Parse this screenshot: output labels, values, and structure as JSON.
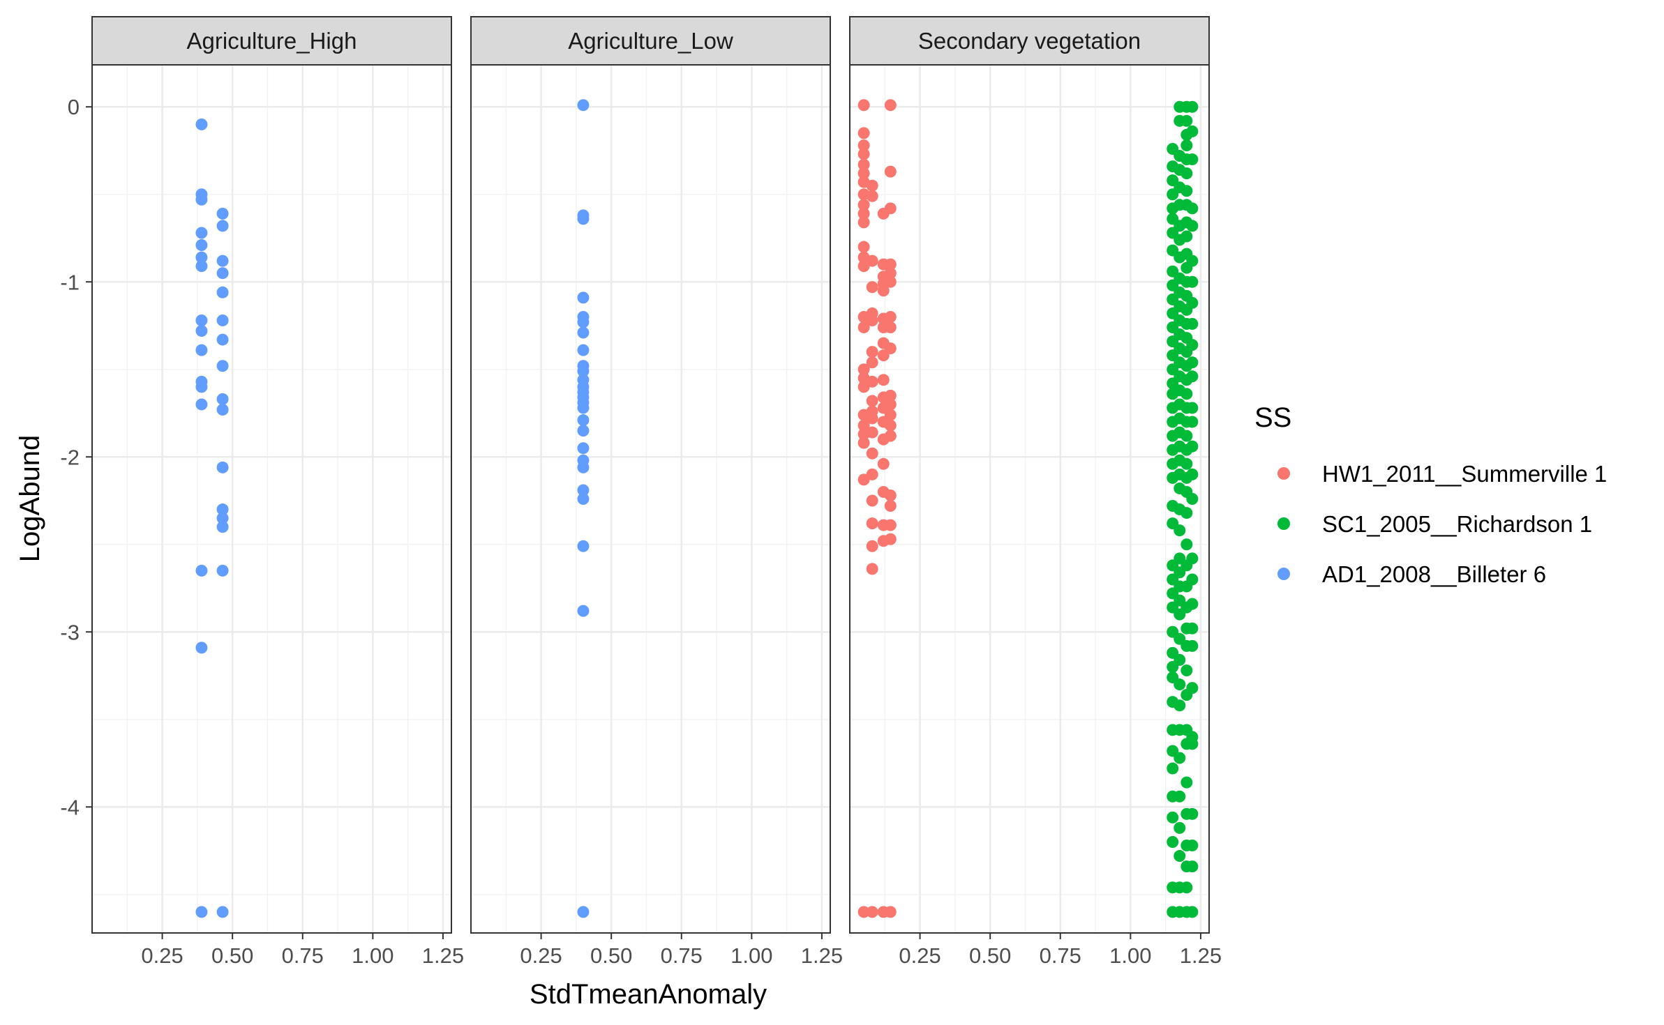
{
  "chart_data": {
    "type": "scatter",
    "facet_by": "land use",
    "facets": [
      "Agriculture_High",
      "Agriculture_Low",
      "Secondary vegetation"
    ],
    "xlabel": "StdTmeanAnomaly",
    "ylabel": "LogAbund",
    "xlim": [
      0.0,
      1.28
    ],
    "ylim": [
      -4.72,
      0.24
    ],
    "x_ticks": [
      0.25,
      0.5,
      0.75,
      1.0,
      1.25
    ],
    "x_tick_labels": [
      "0.25",
      "0.50",
      "0.75",
      "1.00",
      "1.25"
    ],
    "y_ticks": [
      0,
      -1,
      -2,
      -3,
      -4
    ],
    "y_tick_labels": [
      "0",
      "-1",
      "-2",
      "-3",
      "-4"
    ],
    "grid": true,
    "theme": "bw",
    "legend": {
      "title": "SS",
      "position": "right",
      "entries": [
        {
          "label": "HW1_2011__Summerville 1",
          "color": "#F8766D"
        },
        {
          "label": "SC1_2005__Richardson 1",
          "color": "#00BA38"
        },
        {
          "label": "AD1_2008__Billeter 6",
          "color": "#619CFF"
        }
      ]
    },
    "series": [
      {
        "name": "AD1_2008__Billeter 6",
        "color": "#619CFF",
        "facet": "Agriculture_High",
        "x": 0.39,
        "y": [
          -0.1,
          -0.5,
          -0.53,
          -0.72,
          -0.79,
          -0.86,
          -0.91,
          -1.22,
          -1.28,
          -1.39,
          -1.57,
          -1.6,
          -1.7,
          -2.65,
          -3.09,
          -4.6
        ]
      },
      {
        "name": "AD1_2008__Billeter 6",
        "color": "#619CFF",
        "facet": "Agriculture_High",
        "x": 0.465,
        "y": [
          -0.61,
          -0.68,
          -0.88,
          -0.95,
          -1.06,
          -1.22,
          -1.33,
          -1.48,
          -1.67,
          -1.73,
          -2.06,
          -2.3,
          -2.35,
          -2.4,
          -2.65,
          -4.6
        ]
      },
      {
        "name": "AD1_2008__Billeter 6",
        "color": "#619CFF",
        "facet": "Agriculture_Low",
        "x": 0.4,
        "y": [
          0.01,
          -0.62,
          -0.64,
          -1.09,
          -1.2,
          -1.23,
          -1.29,
          -1.39,
          -1.48,
          -1.51,
          -1.56,
          -1.6,
          -1.63,
          -1.66,
          -1.69,
          -1.72,
          -1.79,
          -1.85,
          -1.95,
          -2.02,
          -2.06,
          -2.19,
          -2.24,
          -2.51,
          -2.88,
          -4.6
        ]
      },
      {
        "name": "HW1_2011__Summerville 1",
        "color": "#F8766D",
        "facet": "Secondary vegetation",
        "x": 0.05,
        "y": [
          0.01,
          -0.15,
          -0.22,
          -0.27,
          -0.33,
          -0.38,
          -0.43,
          -0.5,
          -0.56,
          -0.61,
          -0.66,
          -0.8,
          -0.86,
          -0.91,
          -1.2,
          -1.26,
          -1.5,
          -1.55,
          -1.6,
          -1.76,
          -1.82,
          -1.87,
          -1.92,
          -2.13,
          -4.6
        ]
      },
      {
        "name": "HW1_2011__Summerville 1",
        "color": "#F8766D",
        "facet": "Secondary vegetation",
        "x": 0.08,
        "y": [
          -0.45,
          -0.51,
          -0.88,
          -1.03,
          -1.18,
          -1.22,
          -1.4,
          -1.46,
          -1.57,
          -1.68,
          -1.74,
          -1.78,
          -1.86,
          -1.98,
          -2.1,
          -2.25,
          -2.38,
          -2.51,
          -2.64,
          -4.6
        ]
      },
      {
        "name": "HW1_2011__Summerville 1",
        "color": "#F8766D",
        "facet": "Secondary vegetation",
        "x": 0.12,
        "y": [
          -0.61,
          -0.9,
          -0.97,
          -1.01,
          -1.05,
          -1.21,
          -1.26,
          -1.35,
          -1.42,
          -1.56,
          -1.66,
          -1.72,
          -1.8,
          -1.9,
          -2.04,
          -2.2,
          -2.39,
          -2.48,
          -4.6
        ]
      },
      {
        "name": "HW1_2011__Summerville 1",
        "color": "#F8766D",
        "facet": "Secondary vegetation",
        "x": 0.145,
        "y": [
          0.01,
          -0.37,
          -0.58,
          -0.9,
          -0.95,
          -1.0,
          -1.2,
          -1.26,
          -1.38,
          -1.65,
          -1.7,
          -1.76,
          -1.82,
          -1.88,
          -2.22,
          -2.28,
          -2.39,
          -2.47,
          -4.6
        ]
      },
      {
        "name": "SC1_2005__Richardson 1",
        "color": "#00BA38",
        "facet": "Secondary vegetation",
        "x": 1.15,
        "y": [
          -0.24,
          -0.34,
          -0.42,
          -0.5,
          -0.58,
          -0.64,
          -0.72,
          -0.82,
          -0.94,
          -1.02,
          -1.1,
          -1.18,
          -1.26,
          -1.34,
          -1.42,
          -1.5,
          -1.58,
          -1.64,
          -1.72,
          -1.8,
          -1.88,
          -1.96,
          -2.04,
          -2.12,
          -2.28,
          -2.38,
          -2.62,
          -2.7,
          -2.78,
          -2.86,
          -3.0,
          -3.12,
          -3.2,
          -3.26,
          -3.4,
          -3.56,
          -3.68,
          -3.78,
          -3.94,
          -4.06,
          -4.2,
          -4.46,
          -4.6
        ]
      },
      {
        "name": "SC1_2005__Richardson 1",
        "color": "#00BA38",
        "facet": "Secondary vegetation",
        "x": 1.175,
        "y": [
          0.0,
          -0.08,
          -0.28,
          -0.36,
          -0.46,
          -0.56,
          -0.68,
          -0.76,
          -0.86,
          -0.98,
          -1.06,
          -1.14,
          -1.22,
          -1.3,
          -1.38,
          -1.46,
          -1.54,
          -1.62,
          -1.7,
          -1.78,
          -1.86,
          -1.94,
          -2.02,
          -2.1,
          -2.18,
          -2.3,
          -2.42,
          -2.58,
          -2.66,
          -2.74,
          -2.82,
          -2.9,
          -3.04,
          -3.16,
          -3.3,
          -3.42,
          -3.56,
          -3.72,
          -3.94,
          -4.12,
          -4.28,
          -4.46,
          -4.6
        ]
      },
      {
        "name": "SC1_2005__Richardson 1",
        "color": "#00BA38",
        "facet": "Secondary vegetation",
        "x": 1.2,
        "y": [
          0.0,
          -0.08,
          -0.16,
          -0.22,
          -0.3,
          -0.38,
          -0.48,
          -0.56,
          -0.66,
          -0.74,
          -0.84,
          -0.92,
          -1.0,
          -1.08,
          -1.16,
          -1.24,
          -1.32,
          -1.4,
          -1.48,
          -1.56,
          -1.64,
          -1.72,
          -1.8,
          -1.88,
          -1.96,
          -2.04,
          -2.12,
          -2.2,
          -2.32,
          -2.5,
          -2.62,
          -2.74,
          -2.86,
          -2.98,
          -3.08,
          -3.22,
          -3.36,
          -3.56,
          -3.64,
          -3.86,
          -4.04,
          -4.22,
          -4.34,
          -4.46,
          -4.6
        ]
      },
      {
        "name": "SC1_2005__Richardson 1",
        "color": "#00BA38",
        "facet": "Secondary vegetation",
        "x": 1.22,
        "y": [
          0.0,
          -0.14,
          -0.3,
          -0.58,
          -0.68,
          -0.88,
          -1.0,
          -1.12,
          -1.24,
          -1.36,
          -1.46,
          -1.54,
          -1.72,
          -1.8,
          -1.94,
          -2.1,
          -2.24,
          -2.58,
          -2.7,
          -2.84,
          -2.98,
          -3.08,
          -3.32,
          -3.6,
          -3.64,
          -4.04,
          -4.22,
          -4.34,
          -4.6
        ]
      }
    ]
  }
}
